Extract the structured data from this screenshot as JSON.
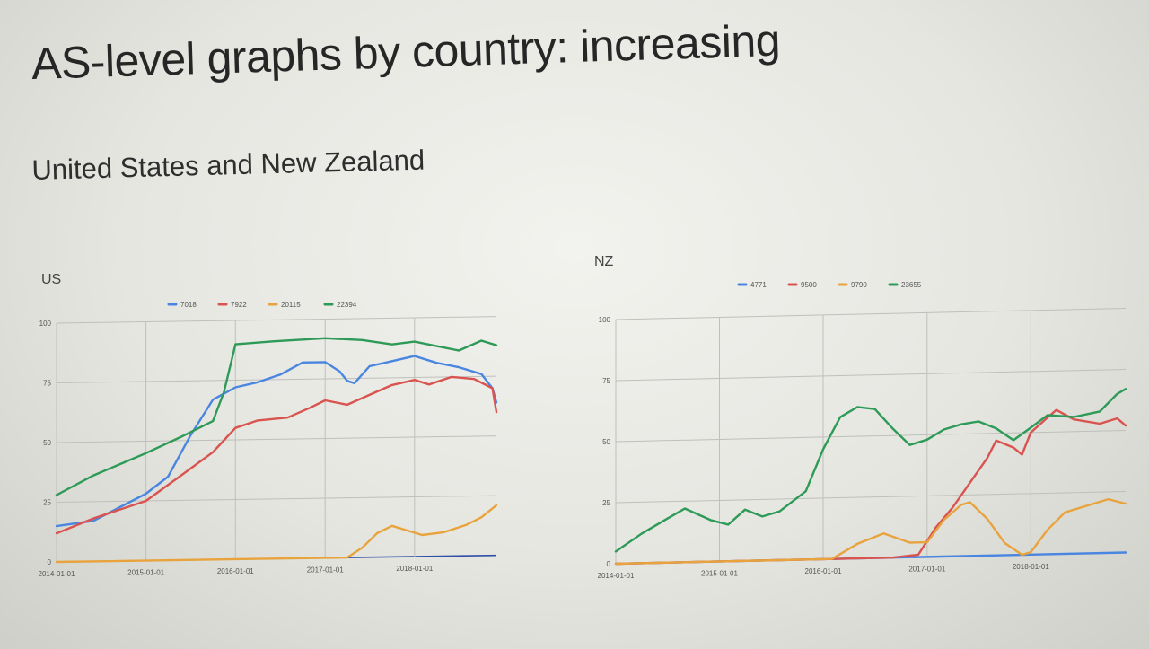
{
  "slide": {
    "title": "AS-level graphs by country: increasing",
    "subtitle": "United States and New Zealand"
  },
  "chart_data": [
    {
      "type": "line",
      "title": "US",
      "xlabel": "",
      "ylabel": "",
      "x_ticks": [
        "2014-01-01",
        "2015-01-01",
        "2016-01-01",
        "2017-01-01",
        "2018-01-01"
      ],
      "y_ticks": [
        0,
        25,
        50,
        75,
        100
      ],
      "xlim": [
        "2014-01-01",
        "2018-12-01"
      ],
      "ylim": [
        0,
        100
      ],
      "grid": true,
      "legend_position": "top",
      "series": [
        {
          "name": "7018",
          "color": "#4a86e0",
          "points": [
            [
              "2014-01-01",
              15
            ],
            [
              "2014-06-01",
              17
            ],
            [
              "2015-01-01",
              28
            ],
            [
              "2015-04-01",
              35
            ],
            [
              "2015-07-01",
              52
            ],
            [
              "2015-10-01",
              67
            ],
            [
              "2016-01-01",
              72
            ],
            [
              "2016-04-01",
              74
            ],
            [
              "2016-07-01",
              77
            ],
            [
              "2016-10-01",
              82
            ],
            [
              "2017-01-01",
              82
            ],
            [
              "2017-03-01",
              78
            ],
            [
              "2017-04-01",
              74
            ],
            [
              "2017-05-01",
              73
            ],
            [
              "2017-07-01",
              80
            ],
            [
              "2017-10-01",
              82
            ],
            [
              "2018-01-01",
              84
            ],
            [
              "2018-04-01",
              81
            ],
            [
              "2018-07-01",
              79
            ],
            [
              "2018-10-01",
              76
            ],
            [
              "2018-11-15",
              70
            ],
            [
              "2018-12-01",
              64
            ]
          ]
        },
        {
          "name": "7922",
          "color": "#d9534f",
          "points": [
            [
              "2014-01-01",
              12
            ],
            [
              "2014-06-01",
              18
            ],
            [
              "2015-01-01",
              25
            ],
            [
              "2015-06-01",
              36
            ],
            [
              "2015-10-01",
              45
            ],
            [
              "2016-01-01",
              55
            ],
            [
              "2016-04-01",
              58
            ],
            [
              "2016-08-01",
              59
            ],
            [
              "2016-11-01",
              63
            ],
            [
              "2017-01-01",
              66
            ],
            [
              "2017-04-01",
              64
            ],
            [
              "2017-07-01",
              68
            ],
            [
              "2017-10-01",
              72
            ],
            [
              "2018-01-01",
              74
            ],
            [
              "2018-03-01",
              72
            ],
            [
              "2018-06-01",
              75
            ],
            [
              "2018-09-01",
              74
            ],
            [
              "2018-11-15",
              70
            ],
            [
              "2018-12-01",
              60
            ]
          ]
        },
        {
          "name": "20115",
          "color": "#e8a33d",
          "points": [
            [
              "2014-01-01",
              0
            ],
            [
              "2017-04-01",
              0
            ],
            [
              "2017-06-01",
              4
            ],
            [
              "2017-08-01",
              10
            ],
            [
              "2017-10-01",
              13
            ],
            [
              "2017-12-01",
              11
            ],
            [
              "2018-02-01",
              9
            ],
            [
              "2018-05-01",
              10
            ],
            [
              "2018-08-01",
              13
            ],
            [
              "2018-10-01",
              16
            ],
            [
              "2018-12-01",
              21
            ]
          ]
        },
        {
          "name": "22394",
          "color": "#2e9a57",
          "points": [
            [
              "2014-01-01",
              28
            ],
            [
              "2014-06-01",
              36
            ],
            [
              "2015-01-01",
              45
            ],
            [
              "2015-06-01",
              52
            ],
            [
              "2015-10-01",
              58
            ],
            [
              "2015-11-15",
              70
            ],
            [
              "2016-01-01",
              90
            ],
            [
              "2016-06-01",
              91
            ],
            [
              "2017-01-01",
              92
            ],
            [
              "2017-06-01",
              91
            ],
            [
              "2017-10-01",
              89
            ],
            [
              "2018-01-01",
              90
            ],
            [
              "2018-04-01",
              88
            ],
            [
              "2018-07-01",
              86
            ],
            [
              "2018-10-01",
              90
            ],
            [
              "2018-12-01",
              88
            ]
          ]
        }
      ]
    },
    {
      "type": "line",
      "title": "NZ",
      "xlabel": "",
      "ylabel": "",
      "x_ticks": [
        "2014-01-01",
        "2015-01-01",
        "2016-01-01",
        "2017-01-01",
        "2018-01-01"
      ],
      "y_ticks": [
        0,
        25,
        50,
        75,
        100
      ],
      "xlim": [
        "2014-01-01",
        "2018-12-01"
      ],
      "ylim": [
        0,
        100
      ],
      "grid": true,
      "legend_position": "top",
      "series": [
        {
          "name": "4771",
          "color": "#4a86e0",
          "points": [
            [
              "2014-01-01",
              0
            ],
            [
              "2018-12-01",
              0
            ]
          ]
        },
        {
          "name": "9500",
          "color": "#d9534f",
          "points": [
            [
              "2014-01-01",
              0
            ],
            [
              "2016-09-01",
              0
            ],
            [
              "2016-12-01",
              1
            ],
            [
              "2017-02-01",
              12
            ],
            [
              "2017-04-01",
              20
            ],
            [
              "2017-06-01",
              30
            ],
            [
              "2017-08-01",
              40
            ],
            [
              "2017-09-01",
              47
            ],
            [
              "2017-11-01",
              44
            ],
            [
              "2017-12-01",
              41
            ],
            [
              "2018-01-01",
              50
            ],
            [
              "2018-03-01",
              56
            ],
            [
              "2018-04-01",
              59
            ],
            [
              "2018-06-01",
              55
            ],
            [
              "2018-09-01",
              53
            ],
            [
              "2018-11-01",
              55
            ],
            [
              "2018-12-01",
              52
            ]
          ]
        },
        {
          "name": "9790",
          "color": "#e8a33d",
          "points": [
            [
              "2014-01-01",
              0
            ],
            [
              "2016-02-01",
              0
            ],
            [
              "2016-05-01",
              6
            ],
            [
              "2016-08-01",
              10
            ],
            [
              "2016-11-01",
              6
            ],
            [
              "2017-01-01",
              6
            ],
            [
              "2017-03-01",
              15
            ],
            [
              "2017-05-01",
              21
            ],
            [
              "2017-06-01",
              22
            ],
            [
              "2017-08-01",
              15
            ],
            [
              "2017-10-01",
              5
            ],
            [
              "2017-12-01",
              0
            ],
            [
              "2018-01-01",
              1
            ],
            [
              "2018-03-01",
              10
            ],
            [
              "2018-05-01",
              17
            ],
            [
              "2018-08-01",
              20
            ],
            [
              "2018-10-01",
              22
            ],
            [
              "2018-12-01",
              20
            ]
          ]
        },
        {
          "name": "23655",
          "color": "#2e9a57",
          "points": [
            [
              "2014-01-01",
              5
            ],
            [
              "2014-04-01",
              12
            ],
            [
              "2014-07-01",
              18
            ],
            [
              "2014-09-01",
              22
            ],
            [
              "2014-12-01",
              17
            ],
            [
              "2015-02-01",
              15
            ],
            [
              "2015-04-01",
              21
            ],
            [
              "2015-06-01",
              18
            ],
            [
              "2015-08-01",
              20
            ],
            [
              "2015-11-01",
              28
            ],
            [
              "2016-01-01",
              45
            ],
            [
              "2016-03-01",
              58
            ],
            [
              "2016-05-01",
              62
            ],
            [
              "2016-07-01",
              61
            ],
            [
              "2016-09-01",
              53
            ],
            [
              "2016-11-01",
              46
            ],
            [
              "2017-01-01",
              48
            ],
            [
              "2017-03-01",
              52
            ],
            [
              "2017-05-01",
              54
            ],
            [
              "2017-07-01",
              55
            ],
            [
              "2017-09-01",
              52
            ],
            [
              "2017-11-01",
              47
            ],
            [
              "2018-01-01",
              52
            ],
            [
              "2018-03-01",
              57
            ],
            [
              "2018-06-01",
              56
            ],
            [
              "2018-09-01",
              58
            ],
            [
              "2018-11-01",
              65
            ],
            [
              "2018-12-01",
              67
            ]
          ]
        }
      ]
    }
  ]
}
